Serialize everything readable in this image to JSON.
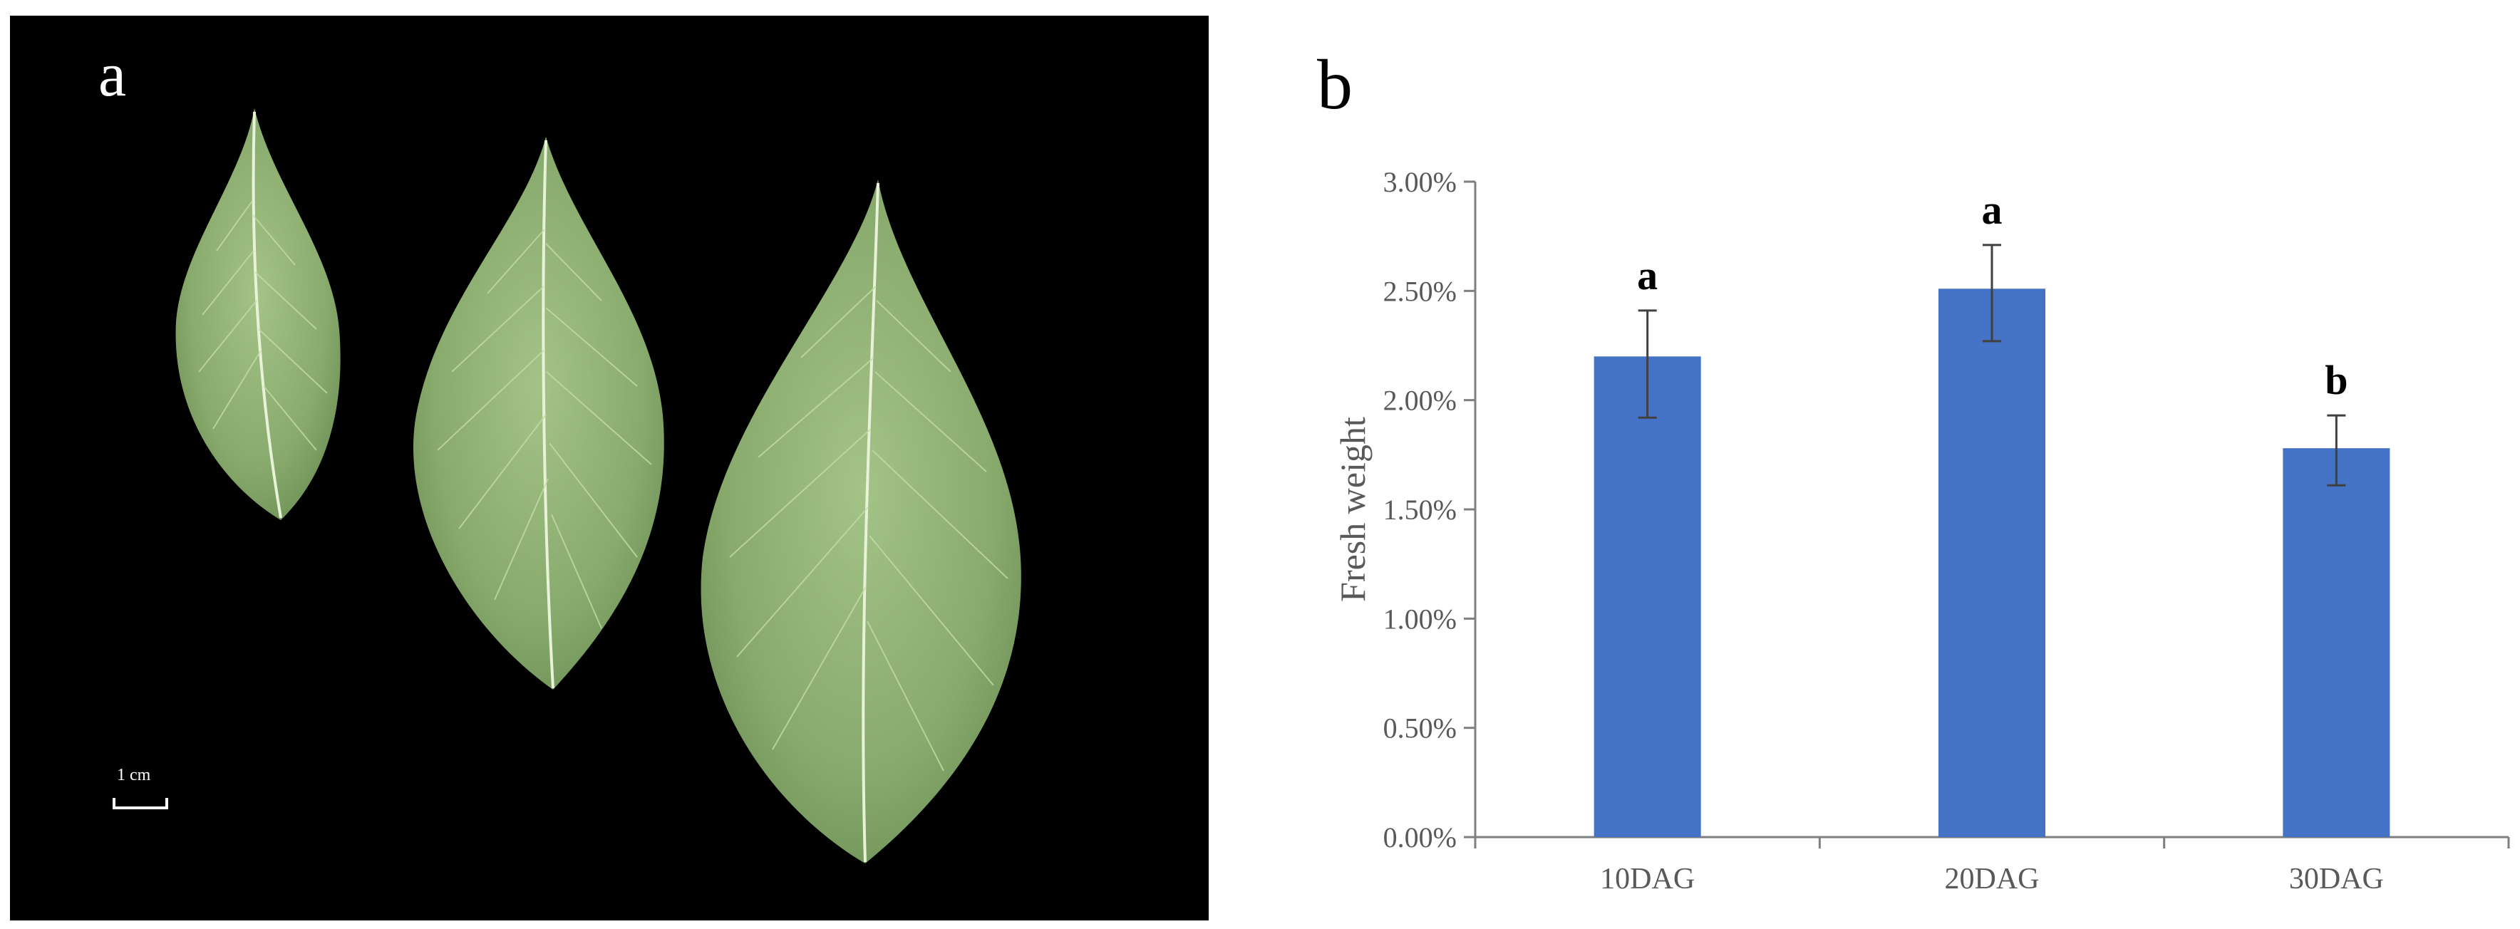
{
  "panel_a": {
    "label": "a",
    "scale_bar_label": "1 cm",
    "colors": {
      "background": "#000000",
      "leaf": "#8fb173",
      "vein": "#e8f2d8"
    }
  },
  "panel_b": {
    "label": "b"
  },
  "chart_data": {
    "type": "bar",
    "ylabel": "Fresh weight",
    "xlabel": "",
    "ylim": [
      0,
      0.03
    ],
    "ytick_values": [
      0,
      0.005,
      0.01,
      0.015,
      0.02,
      0.025,
      0.03
    ],
    "ytick_labels": [
      "0.00%",
      "0.50%",
      "1.00%",
      "1.50%",
      "2.00%",
      "2.50%",
      "3.00%"
    ],
    "categories": [
      "10DAG",
      "20DAG",
      "30DAG"
    ],
    "values": [
      0.022,
      0.0251,
      0.0178
    ],
    "error_low": [
      0.0192,
      0.0227,
      0.0161
    ],
    "error_high": [
      0.0241,
      0.0271,
      0.0193
    ],
    "significance_labels": [
      "a",
      "a",
      "b"
    ],
    "grid": false,
    "bar_color": "#4472c4",
    "axis_color": "#7f7f7f"
  }
}
